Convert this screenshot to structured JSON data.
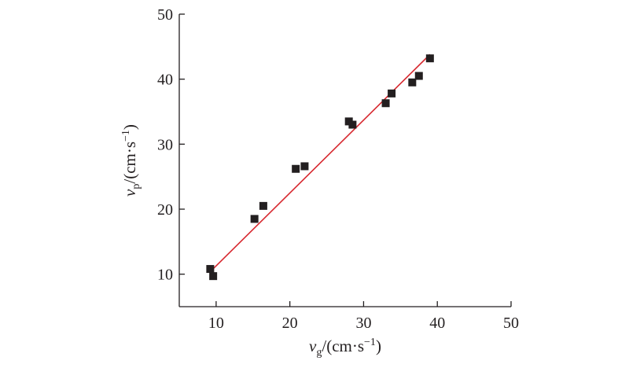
{
  "chart_data": {
    "type": "scatter",
    "title": "",
    "xlabel": {
      "symbol": "v",
      "subscript": "g",
      "unit_open": "/(cm·s",
      "exponent": "−1",
      "unit_close": ")"
    },
    "ylabel": {
      "symbol": "v",
      "subscript": "p",
      "unit_open": "/(cm·s",
      "exponent": "−1",
      "unit_close": ")"
    },
    "xlim": [
      5,
      50
    ],
    "ylim": [
      5,
      50
    ],
    "x_ticks": [
      "10",
      "20",
      "30",
      "40",
      "50"
    ],
    "y_ticks": [
      "10",
      "20",
      "30",
      "40",
      "50"
    ],
    "grid": false,
    "legend": "none",
    "point_color": "#231f20",
    "line_color": "#d7282f",
    "points": [
      {
        "x": 9.2,
        "y": 10.8
      },
      {
        "x": 9.6,
        "y": 9.7
      },
      {
        "x": 15.2,
        "y": 18.5
      },
      {
        "x": 16.4,
        "y": 20.5
      },
      {
        "x": 20.8,
        "y": 26.2
      },
      {
        "x": 22.0,
        "y": 26.6
      },
      {
        "x": 28.0,
        "y": 33.5
      },
      {
        "x": 28.5,
        "y": 33.0
      },
      {
        "x": 33.0,
        "y": 36.3
      },
      {
        "x": 33.8,
        "y": 37.8
      },
      {
        "x": 36.6,
        "y": 39.5
      },
      {
        "x": 37.5,
        "y": 40.5
      },
      {
        "x": 39.0,
        "y": 43.2
      }
    ],
    "fit_line": {
      "x": [
        9.4,
        39.0
      ],
      "y": [
        10.6,
        43.8
      ]
    }
  }
}
